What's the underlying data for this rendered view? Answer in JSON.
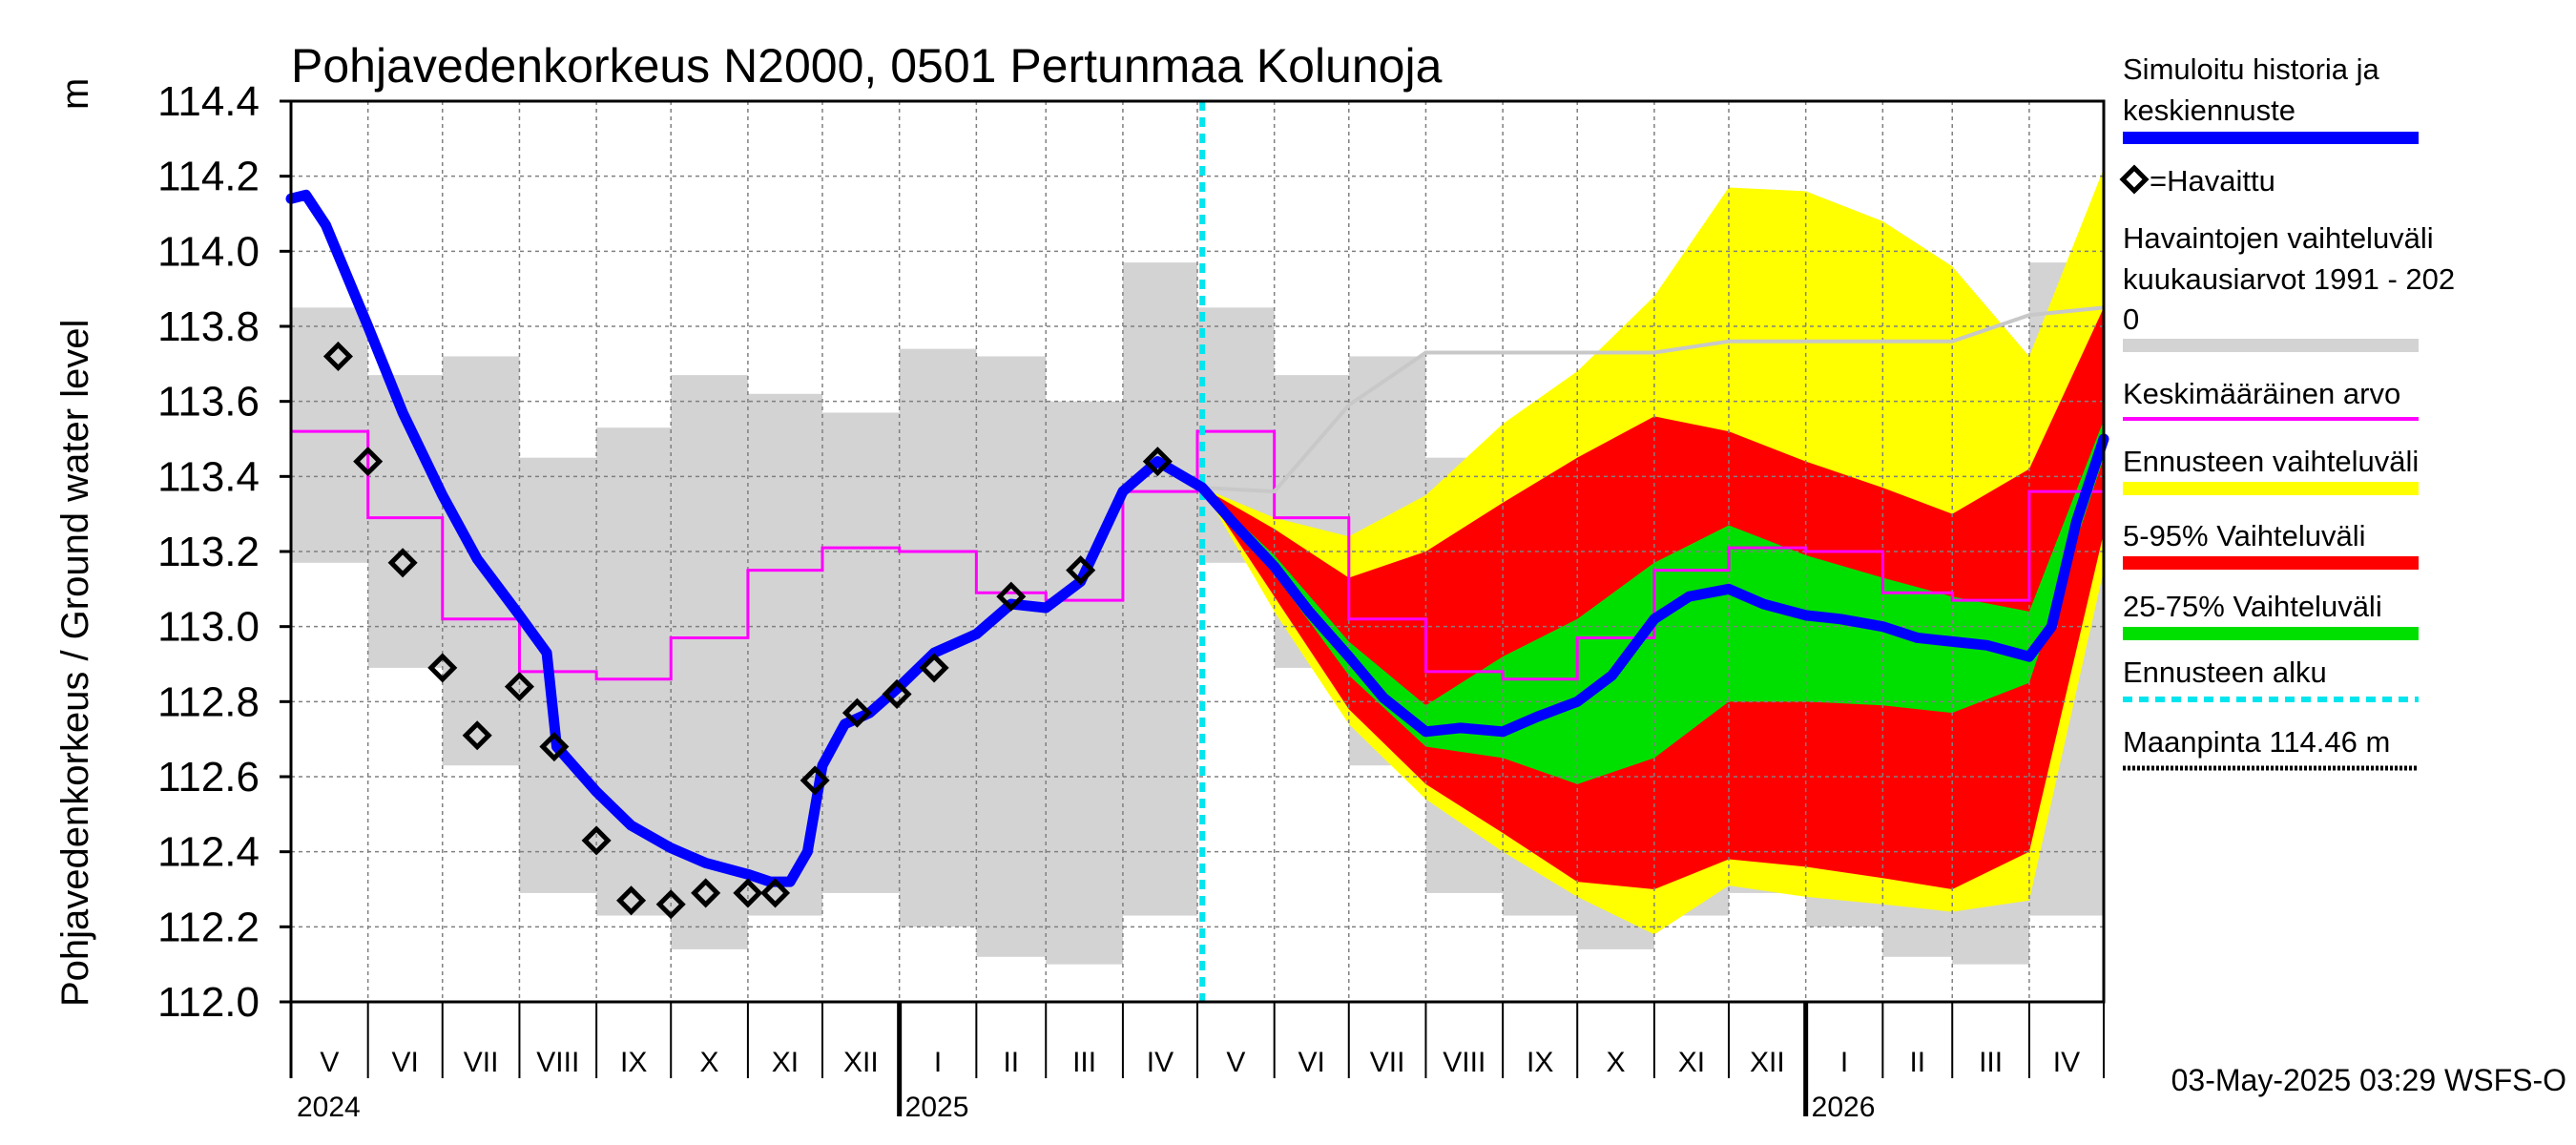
{
  "chart_data": {
    "type": "line",
    "title": "Pohjavedenkorkeus N2000, 0501 Pertunmaa Kolunoja",
    "ylabel": "Pohjavedenkorkeus / Ground water level",
    "yunit": "m",
    "ylim": [
      112.0,
      114.4
    ],
    "yticks": [
      "112.0",
      "112.2",
      "112.4",
      "112.6",
      "112.8",
      "113.0",
      "113.2",
      "113.4",
      "113.6",
      "113.8",
      "114.0",
      "114.2",
      "114.4"
    ],
    "months": [
      "V",
      "VI",
      "VII",
      "VIII",
      "IX",
      "X",
      "XI",
      "XII",
      "I",
      "II",
      "III",
      "IV",
      "V",
      "VI",
      "VII",
      "VIII",
      "IX",
      "X",
      "XI",
      "XII",
      "I",
      "II",
      "III",
      "IV"
    ],
    "years": [
      "2024",
      "2025",
      "2026"
    ],
    "forecast_start": "2025-05-03",
    "ground_surface_m": 114.46,
    "timestamp": "03-May-2025 03:29 WSFS-O",
    "legend": [
      {
        "label": "Simuloitu historia ja keskiennuste",
        "color": "#0000ff"
      },
      {
        "label": "=Havaittu",
        "color": "#000000"
      },
      {
        "label": "Havaintojen vaihteluväli kuukausiarvot 1991 - 2020",
        "color": "#d3d3d3"
      },
      {
        "label": "Keskimääräinen arvo",
        "color": "#ff00ff"
      },
      {
        "label": "Ennusteen vaihteluväli",
        "color": "#ffff00"
      },
      {
        "label": "5-95% Vaihteluväli",
        "color": "#ff0000"
      },
      {
        "label": "25-75% Vaihteluväli",
        "color": "#00e000"
      },
      {
        "label": "Ennusteen alku",
        "color": "#00e5ee"
      },
      {
        "label": "Maanpinta 114.46 m",
        "color": "#000000"
      }
    ],
    "observed_range_monthly": [
      {
        "month": "V",
        "min": 113.17,
        "max": 113.85
      },
      {
        "month": "VI",
        "min": 112.89,
        "max": 113.67
      },
      {
        "month": "VII",
        "min": 112.63,
        "max": 113.72
      },
      {
        "month": "VIII",
        "min": 112.29,
        "max": 113.45
      },
      {
        "month": "IX",
        "min": 112.23,
        "max": 113.53
      },
      {
        "month": "X",
        "min": 112.14,
        "max": 113.67
      },
      {
        "month": "XI",
        "min": 112.23,
        "max": 113.62
      },
      {
        "month": "XII",
        "min": 112.29,
        "max": 113.57
      },
      {
        "month": "I",
        "min": 112.2,
        "max": 113.74
      },
      {
        "month": "II",
        "min": 112.12,
        "max": 113.72
      },
      {
        "month": "III",
        "min": 112.1,
        "max": 113.6
      },
      {
        "month": "IV",
        "min": 112.23,
        "max": 113.97
      }
    ],
    "mean_monthly": [
      {
        "month": "V",
        "value": 113.52
      },
      {
        "month": "VI",
        "value": 113.29
      },
      {
        "month": "VII",
        "value": 113.02
      },
      {
        "month": "VIII",
        "value": 112.88
      },
      {
        "month": "IX",
        "value": 112.86
      },
      {
        "month": "X",
        "value": 112.97
      },
      {
        "month": "XI",
        "value": 113.15
      },
      {
        "month": "XII",
        "value": 113.21
      },
      {
        "month": "I",
        "value": 113.2
      },
      {
        "month": "II",
        "value": 113.09
      },
      {
        "month": "III",
        "value": 113.07
      },
      {
        "month": "IV",
        "value": 113.36
      }
    ],
    "observed_points": [
      {
        "x": "2024-05-20",
        "y": 113.72
      },
      {
        "x": "2024-06-01",
        "y": 113.44
      },
      {
        "x": "2024-06-15",
        "y": 113.17
      },
      {
        "x": "2024-07-01",
        "y": 112.89
      },
      {
        "x": "2024-07-15",
        "y": 112.71
      },
      {
        "x": "2024-08-01",
        "y": 112.84
      },
      {
        "x": "2024-08-15",
        "y": 112.68
      },
      {
        "x": "2024-09-01",
        "y": 112.43
      },
      {
        "x": "2024-09-15",
        "y": 112.27
      },
      {
        "x": "2024-10-01",
        "y": 112.26
      },
      {
        "x": "2024-10-15",
        "y": 112.29
      },
      {
        "x": "2024-11-01",
        "y": 112.29
      },
      {
        "x": "2024-11-12",
        "y": 112.29
      },
      {
        "x": "2024-11-28",
        "y": 112.59
      },
      {
        "x": "2024-12-15",
        "y": 112.77
      },
      {
        "x": "2024-12-31",
        "y": 112.82
      },
      {
        "x": "2025-01-15",
        "y": 112.89
      },
      {
        "x": "2025-02-15",
        "y": 113.08
      },
      {
        "x": "2025-03-15",
        "y": 113.15
      },
      {
        "x": "2025-04-15",
        "y": 113.44
      }
    ],
    "simulated_median": [
      {
        "x": "2024-05-01",
        "y": 114.14
      },
      {
        "x": "2024-05-07",
        "y": 114.15
      },
      {
        "x": "2024-05-15",
        "y": 114.07
      },
      {
        "x": "2024-06-01",
        "y": 113.8
      },
      {
        "x": "2024-06-15",
        "y": 113.57
      },
      {
        "x": "2024-07-01",
        "y": 113.35
      },
      {
        "x": "2024-07-15",
        "y": 113.18
      },
      {
        "x": "2024-08-01",
        "y": 113.03
      },
      {
        "x": "2024-08-12",
        "y": 112.93
      },
      {
        "x": "2024-08-16",
        "y": 112.68
      },
      {
        "x": "2024-09-01",
        "y": 112.56
      },
      {
        "x": "2024-09-15",
        "y": 112.47
      },
      {
        "x": "2024-10-01",
        "y": 112.41
      },
      {
        "x": "2024-10-15",
        "y": 112.37
      },
      {
        "x": "2024-11-01",
        "y": 112.34
      },
      {
        "x": "2024-11-10",
        "y": 112.32
      },
      {
        "x": "2024-11-18",
        "y": 112.32
      },
      {
        "x": "2024-11-25",
        "y": 112.4
      },
      {
        "x": "2024-12-01",
        "y": 112.63
      },
      {
        "x": "2024-12-10",
        "y": 112.74
      },
      {
        "x": "2024-12-20",
        "y": 112.77
      },
      {
        "x": "2025-01-01",
        "y": 112.84
      },
      {
        "x": "2025-01-15",
        "y": 112.93
      },
      {
        "x": "2025-02-01",
        "y": 112.98
      },
      {
        "x": "2025-02-15",
        "y": 113.06
      },
      {
        "x": "2025-03-01",
        "y": 113.05
      },
      {
        "x": "2025-03-15",
        "y": 113.12
      },
      {
        "x": "2025-04-01",
        "y": 113.36
      },
      {
        "x": "2025-04-15",
        "y": 113.44
      },
      {
        "x": "2025-05-03",
        "y": 113.37
      },
      {
        "x": "2025-05-15",
        "y": 113.28
      },
      {
        "x": "2025-06-01",
        "y": 113.16
      },
      {
        "x": "2025-06-15",
        "y": 113.04
      },
      {
        "x": "2025-07-01",
        "y": 112.92
      },
      {
        "x": "2025-07-15",
        "y": 112.81
      },
      {
        "x": "2025-08-01",
        "y": 112.72
      },
      {
        "x": "2025-08-15",
        "y": 112.73
      },
      {
        "x": "2025-09-01",
        "y": 112.72
      },
      {
        "x": "2025-09-15",
        "y": 112.76
      },
      {
        "x": "2025-10-01",
        "y": 112.8
      },
      {
        "x": "2025-10-15",
        "y": 112.87
      },
      {
        "x": "2025-11-01",
        "y": 113.02
      },
      {
        "x": "2025-11-15",
        "y": 113.08
      },
      {
        "x": "2025-12-01",
        "y": 113.1
      },
      {
        "x": "2025-12-15",
        "y": 113.06
      },
      {
        "x": "2026-01-01",
        "y": 113.03
      },
      {
        "x": "2026-01-15",
        "y": 113.02
      },
      {
        "x": "2026-02-01",
        "y": 113.0
      },
      {
        "x": "2026-02-15",
        "y": 112.97
      },
      {
        "x": "2026-03-01",
        "y": 112.96
      },
      {
        "x": "2026-03-15",
        "y": 112.95
      },
      {
        "x": "2026-04-01",
        "y": 112.92
      },
      {
        "x": "2026-04-10",
        "y": 113.0
      },
      {
        "x": "2026-04-20",
        "y": 113.28
      },
      {
        "x": "2026-05-01",
        "y": 113.5
      }
    ],
    "forecast_bands": [
      {
        "x": "2025-05-03",
        "min": 113.37,
        "p5": 113.37,
        "p25": 113.37,
        "p75": 113.37,
        "p95": 113.37,
        "max": 113.37
      },
      {
        "x": "2025-06-01",
        "min": 113.04,
        "p5": 113.08,
        "p25": 113.14,
        "p75": 113.19,
        "p95": 113.26,
        "max": 113.29
      },
      {
        "x": "2025-07-01",
        "min": 112.74,
        "p5": 112.78,
        "p25": 112.87,
        "p75": 112.96,
        "p95": 113.13,
        "max": 113.24
      },
      {
        "x": "2025-08-01",
        "min": 112.54,
        "p5": 112.58,
        "p25": 112.68,
        "p75": 112.79,
        "p95": 113.2,
        "max": 113.35
      },
      {
        "x": "2025-09-01",
        "min": 112.4,
        "p5": 112.45,
        "p25": 112.65,
        "p75": 112.92,
        "p95": 113.33,
        "max": 113.54
      },
      {
        "x": "2025-10-01",
        "min": 112.28,
        "p5": 112.32,
        "p25": 112.58,
        "p75": 113.02,
        "p95": 113.45,
        "max": 113.68
      },
      {
        "x": "2025-11-01",
        "min": 112.18,
        "p5": 112.3,
        "p25": 112.65,
        "p75": 113.17,
        "p95": 113.56,
        "max": 113.88
      },
      {
        "x": "2025-12-01",
        "min": 112.31,
        "p5": 112.38,
        "p25": 112.8,
        "p75": 113.27,
        "p95": 113.52,
        "max": 114.17
      },
      {
        "x": "2026-01-01",
        "min": 112.28,
        "p5": 112.36,
        "p25": 112.8,
        "p75": 113.19,
        "p95": 113.44,
        "max": 114.16
      },
      {
        "x": "2026-02-01",
        "min": 112.26,
        "p5": 112.33,
        "p25": 112.79,
        "p75": 113.13,
        "p95": 113.37,
        "max": 114.08
      },
      {
        "x": "2026-03-01",
        "min": 112.24,
        "p5": 112.3,
        "p25": 112.77,
        "p75": 113.08,
        "p95": 113.3,
        "max": 113.96
      },
      {
        "x": "2026-04-01",
        "min": 112.27,
        "p5": 112.4,
        "p25": 112.85,
        "p75": 113.04,
        "p95": 113.42,
        "max": 113.72
      },
      {
        "x": "2026-05-01",
        "min": 113.15,
        "p5": 113.25,
        "p25": 113.45,
        "p75": 113.55,
        "p95": 113.85,
        "max": 114.22
      }
    ],
    "forecast_range_max": [
      {
        "x": "2025-05-03",
        "y": 113.37
      },
      {
        "x": "2025-06-01",
        "y": 113.36
      },
      {
        "x": "2025-07-01",
        "y": 113.59
      },
      {
        "x": "2025-08-01",
        "y": 113.73
      },
      {
        "x": "2025-09-01",
        "y": 113.73
      },
      {
        "x": "2025-10-01",
        "y": 113.73
      },
      {
        "x": "2025-11-01",
        "y": 113.73
      },
      {
        "x": "2025-12-01",
        "y": 113.76
      },
      {
        "x": "2026-01-01",
        "y": 113.76
      },
      {
        "x": "2026-02-01",
        "y": 113.76
      },
      {
        "x": "2026-03-01",
        "y": 113.76
      },
      {
        "x": "2026-04-01",
        "y": 113.83
      },
      {
        "x": "2026-05-01",
        "y": 113.85
      }
    ]
  }
}
